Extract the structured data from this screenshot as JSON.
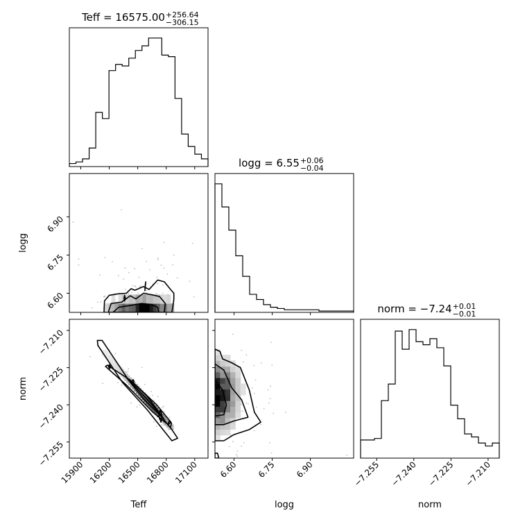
{
  "chart_data": {
    "type": "corner",
    "parameters": [
      "Teff",
      "logg",
      "norm"
    ],
    "axes_labels": {
      "x": [
        "Teff",
        "logg",
        "norm"
      ],
      "y": [
        "",
        "logg",
        "norm"
      ]
    },
    "titles": [
      {
        "param": "Teff",
        "text": "Teff = 16575.00",
        "plus": "+256.64",
        "minus": "−306.15"
      },
      {
        "param": "logg",
        "text": "logg = 6.55",
        "plus": "+0.06",
        "minus": "−0.04"
      },
      {
        "param": "norm",
        "text": "norm = −7.24",
        "plus": "+0.01",
        "minus": "−0.01"
      }
    ],
    "ranges": {
      "Teff": [
        15780,
        17240
      ],
      "logg": [
        6.525,
        7.07
      ],
      "norm": [
        -7.2615,
        -7.2055
      ]
    },
    "ticks": {
      "Teff": {
        "values": [
          15900,
          16200,
          16500,
          16800,
          17100
        ],
        "labels": [
          "15900",
          "16200",
          "16500",
          "16800",
          "17100"
        ]
      },
      "logg": {
        "values": [
          6.6,
          6.75,
          6.9
        ],
        "labels": [
          "6.60",
          "6.75",
          "6.90"
        ]
      },
      "norm": {
        "values": [
          -7.255,
          -7.24,
          -7.225,
          -7.21
        ],
        "labels": [
          "−7.255",
          "−7.240",
          "−7.225",
          "−7.210"
        ]
      }
    },
    "histograms": {
      "Teff": {
        "edges_range": [
          15780,
          17240
        ],
        "counts": [
          2,
          3,
          5,
          12,
          35,
          31,
          62,
          66,
          65,
          70,
          75,
          78,
          83,
          83,
          72,
          71,
          44,
          21,
          13,
          8,
          5
        ]
      },
      "logg": {
        "edges_range": [
          6.525,
          7.07
        ],
        "counts": [
          100,
          82,
          64,
          44,
          28,
          14,
          10,
          6,
          4,
          3,
          2,
          2,
          2,
          2,
          2,
          1,
          1,
          1,
          1,
          1
        ]
      },
      "norm": {
        "edges_range": [
          -7.2615,
          -7.2055
        ],
        "counts": [
          12,
          12,
          13,
          38,
          49,
          84,
          72,
          85,
          77,
          75,
          79,
          73,
          61,
          35,
          26,
          16,
          14,
          10,
          8,
          10
        ]
      }
    },
    "contours": {
      "logg_vs_Teff": [
        [
          [
            16145,
            6.525
          ],
          [
            16150,
            6.57
          ],
          [
            16200,
            6.592
          ],
          [
            16300,
            6.598
          ],
          [
            16380,
            6.6
          ],
          [
            16430,
            6.618
          ],
          [
            16470,
            6.612
          ],
          [
            16560,
            6.626
          ],
          [
            16620,
            6.615
          ],
          [
            16710,
            6.652
          ],
          [
            16780,
            6.645
          ],
          [
            16830,
            6.622
          ],
          [
            16880,
            6.6
          ],
          [
            16880,
            6.575
          ],
          [
            16860,
            6.525
          ]
        ],
        [
          [
            16190,
            6.525
          ],
          [
            16220,
            6.56
          ],
          [
            16330,
            6.565
          ],
          [
            16420,
            6.59
          ],
          [
            16480,
            6.578
          ],
          [
            16560,
            6.6
          ],
          [
            16650,
            6.594
          ],
          [
            16730,
            6.587
          ],
          [
            16790,
            6.56
          ],
          [
            16780,
            6.525
          ]
        ],
        [
          [
            16240,
            6.525
          ],
          [
            16300,
            6.545
          ],
          [
            16440,
            6.553
          ],
          [
            16540,
            6.56
          ],
          [
            16640,
            6.556
          ],
          [
            16710,
            6.545
          ],
          [
            16720,
            6.525
          ]
        ],
        [
          [
            16355,
            6.58
          ],
          [
            16362,
            6.57
          ],
          [
            16369,
            6.58
          ],
          [
            16362,
            6.592
          ]
        ],
        [
          [
            16575,
            6.61
          ],
          [
            16580,
            6.628
          ],
          [
            16585,
            6.645
          ],
          [
            16580,
            6.635
          ]
        ]
      ],
      "norm_vs_Teff": [
        [
          [
            16075,
            -7.214
          ],
          [
            16125,
            -7.214
          ],
          [
            16395,
            -7.2295
          ],
          [
            16640,
            -7.2395
          ],
          [
            16860,
            -7.25
          ],
          [
            16920,
            -7.2535
          ],
          [
            16860,
            -7.2545
          ],
          [
            16600,
            -7.242
          ],
          [
            16340,
            -7.231
          ],
          [
            16080,
            -7.216
          ]
        ],
        [
          [
            16180,
            -7.224
          ],
          [
            16420,
            -7.23
          ],
          [
            16700,
            -7.24
          ],
          [
            16850,
            -7.247
          ],
          [
            16820,
            -7.248
          ],
          [
            16660,
            -7.243
          ],
          [
            16380,
            -7.232
          ],
          [
            16160,
            -7.2245
          ]
        ],
        [
          [
            16380,
            -7.229
          ],
          [
            16590,
            -7.236
          ],
          [
            16780,
            -7.246
          ],
          [
            16560,
            -7.2375
          ]
        ],
        [
          [
            16738,
            -7.242
          ],
          [
            16756,
            -7.2445
          ],
          [
            16745,
            -7.247
          ],
          [
            16722,
            -7.2445
          ]
        ],
        [
          [
            16830,
            -7.2465
          ],
          [
            16856,
            -7.2475
          ],
          [
            16845,
            -7.249
          ],
          [
            16818,
            -7.2482
          ]
        ],
        [
          [
            16450,
            -7.2298
          ],
          [
            16462,
            -7.2305
          ],
          [
            16452,
            -7.2312
          ],
          [
            16440,
            -7.2305
          ]
        ],
        [
          [
            16200,
            -7.2238
          ],
          [
            16215,
            -7.2246
          ],
          [
            16205,
            -7.2254
          ],
          [
            16192,
            -7.2246
          ]
        ]
      ],
      "norm_vs_logg": [
        [
          [
            6.525,
            -7.2175
          ],
          [
            6.545,
            -7.2185
          ],
          [
            6.555,
            -7.2215
          ],
          [
            6.59,
            -7.223
          ],
          [
            6.625,
            -7.225
          ],
          [
            6.66,
            -7.234
          ],
          [
            6.68,
            -7.243
          ],
          [
            6.705,
            -7.247
          ],
          [
            6.66,
            -7.25
          ],
          [
            6.6,
            -7.252
          ],
          [
            6.56,
            -7.2545
          ],
          [
            6.525,
            -7.2545
          ]
        ],
        [
          [
            6.525,
            -7.2235
          ],
          [
            6.56,
            -7.226
          ],
          [
            6.59,
            -7.233
          ],
          [
            6.63,
            -7.238
          ],
          [
            6.655,
            -7.245
          ],
          [
            6.6,
            -7.2465
          ],
          [
            6.56,
            -7.248
          ],
          [
            6.525,
            -7.248
          ]
        ],
        [
          [
            6.525,
            -7.23
          ],
          [
            6.555,
            -7.234
          ],
          [
            6.57,
            -7.24
          ],
          [
            6.56,
            -7.244
          ],
          [
            6.525,
            -7.2445
          ]
        ],
        [
          [
            6.525,
            -7.2595
          ],
          [
            6.535,
            -7.2595
          ],
          [
            6.54,
            -7.2615
          ],
          [
            6.525,
            -7.2615
          ]
        ]
      ]
    },
    "density": {
      "logg_vs_Teff": {
        "x_range": [
          16150,
          16880
        ],
        "y_range": [
          6.525,
          6.665
        ],
        "nx": 20,
        "ny": 4,
        "center": [
          16560,
          6.53
        ],
        "spread": [
          190,
          0.03
        ]
      },
      "norm_vs_Teff": {
        "along_start": [
          16150,
          -7.219
        ],
        "along_end": [
          16850,
          -7.249
        ],
        "steps": 36,
        "width": 0.0025
      },
      "norm_vs_logg": {
        "x_range": [
          6.525,
          6.705
        ],
        "y_range": [
          -7.2545,
          -7.2175
        ],
        "nx": 9,
        "ny": 16,
        "center": [
          6.535,
          -7.236
        ],
        "spread": [
          0.045,
          0.0075
        ]
      }
    },
    "scatter_points_count": {
      "logg_vs_Teff": 90,
      "norm_vs_Teff": 60,
      "norm_vs_logg": 80
    }
  }
}
